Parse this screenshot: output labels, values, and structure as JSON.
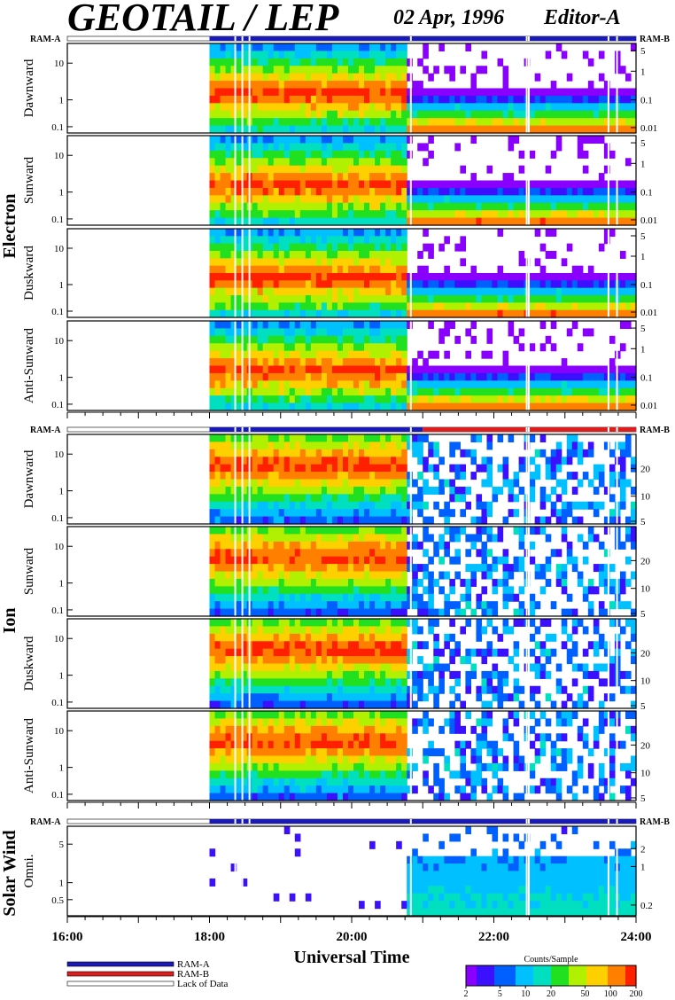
{
  "header": {
    "title": "GEOTAIL / LEP",
    "date": "02 Apr, 1996",
    "editor": "Editor-A"
  },
  "colors": {
    "ram_a": "#1a1ab4",
    "ram_b": "#dc1e1e",
    "lack_of_data": "#ffffff",
    "colorscale": [
      "#8a00ff",
      "#3a10ff",
      "#0060ff",
      "#00c0ff",
      "#00e0c0",
      "#20e020",
      "#b0f000",
      "#ffd000",
      "#ff8000",
      "#ff2000"
    ]
  },
  "chart_data": {
    "type": "heatmap",
    "xlabel": "Universal Time",
    "x_ticks": [
      "16:00",
      "18:00",
      "20:00",
      "22:00",
      "24:00"
    ],
    "x_range_hours": [
      16,
      24
    ],
    "groups": [
      {
        "name": "Electron",
        "ram_left": "RAM-A",
        "ram_right": "RAM-B",
        "panels": [
          {
            "label": "Dawnward",
            "yticks": [
              "10",
              "1",
              "0.1"
            ],
            "rticks": [
              "5",
              "1",
              "0.1",
              "0.01"
            ]
          },
          {
            "label": "Sunward",
            "yticks": [
              "10",
              "1",
              "0.1"
            ],
            "rticks": [
              "5",
              "1",
              "0.1",
              "0.01"
            ]
          },
          {
            "label": "Duskward",
            "yticks": [
              "10",
              "1",
              "0.1"
            ],
            "rticks": [
              "5",
              "1",
              "0.1",
              "0.01"
            ]
          },
          {
            "label": "Anti-Sunward",
            "yticks": [
              "10",
              "1",
              "0.1"
            ],
            "rticks": [
              "5",
              "1",
              "0.1",
              "0.01"
            ]
          }
        ]
      },
      {
        "name": "Ion",
        "ram_left": "RAM-A",
        "ram_right": "RAM-B",
        "panels": [
          {
            "label": "Dawnward",
            "yticks": [
              "10",
              "1",
              "0.1"
            ],
            "rticks": [
              "20",
              "10",
              "5"
            ]
          },
          {
            "label": "Sunward",
            "yticks": [
              "10",
              "1",
              "0.1"
            ],
            "rticks": [
              "20",
              "10",
              "5"
            ]
          },
          {
            "label": "Duskward",
            "yticks": [
              "10",
              "1",
              "0.1"
            ],
            "rticks": [
              "20",
              "10",
              "5"
            ]
          },
          {
            "label": "Anti-Sunward",
            "yticks": [
              "10",
              "1",
              "0.1"
            ],
            "rticks": [
              "20",
              "10",
              "5"
            ]
          }
        ]
      },
      {
        "name": "Solar Wind",
        "ram_left": "RAM-A",
        "ram_right": "RAM-B",
        "panels": [
          {
            "label": "Omni.",
            "yticks": [
              "5",
              "1",
              "0.5"
            ],
            "rticks": [
              "2",
              "1",
              "0.2"
            ]
          }
        ]
      }
    ],
    "data_start_hour": 18.0,
    "boundary_hour": 20.75,
    "legend": [
      "RAM-A",
      "RAM-B",
      "Lack of Data"
    ],
    "colorbar": {
      "title": "Counts/Sample",
      "ticks": [
        "2",
        "5",
        "10",
        "20",
        "50",
        "100",
        "200"
      ]
    }
  }
}
